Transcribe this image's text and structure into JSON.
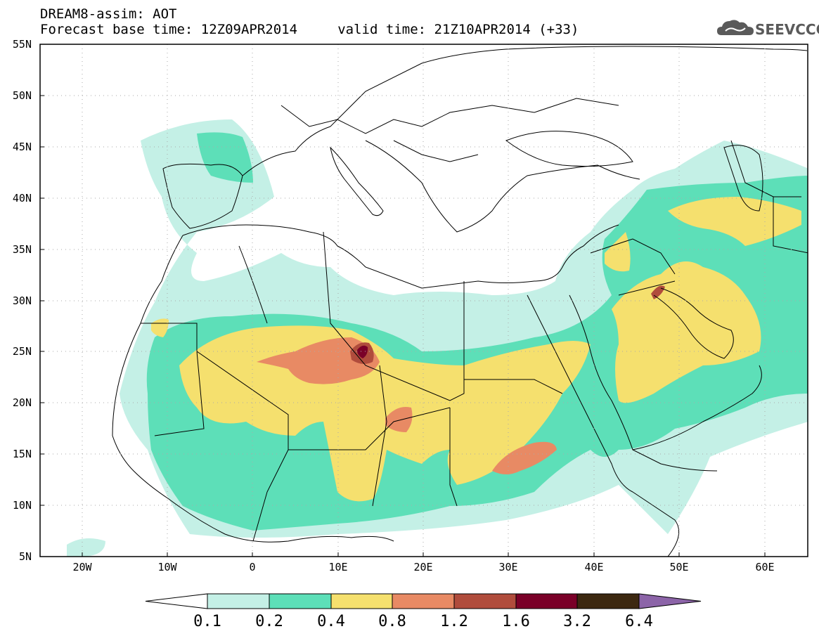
{
  "title": {
    "line1": "DREAM8-assim: AOT",
    "line2": "Forecast base time: 12Z09APR2014     valid time: 21Z10APR2014 (+33)"
  },
  "logo": {
    "text": "SEEVCCC",
    "icon": "cloud-icon"
  },
  "map": {
    "lat_ticks": [
      "55N",
      "50N",
      "45N",
      "40N",
      "35N",
      "30N",
      "25N",
      "20N",
      "15N",
      "10N",
      "5N"
    ],
    "lon_ticks": [
      "20W",
      "10W",
      "0",
      "10E",
      "20E",
      "30E",
      "40E",
      "50E",
      "60E"
    ],
    "lon_range": [
      -25,
      65
    ],
    "lat_range": [
      5,
      55
    ],
    "grid": true
  },
  "colorbar": {
    "labels": [
      "0.1",
      "0.2",
      "0.4",
      "0.8",
      "1.2",
      "1.6",
      "3.2",
      "6.4"
    ],
    "colors": [
      "#ffffff",
      "#c4f0e6",
      "#5ddfb8",
      "#f5e06e",
      "#e88a64",
      "#b04c3c",
      "#7a0028",
      "#3c2810",
      "#8c64a8"
    ]
  }
}
